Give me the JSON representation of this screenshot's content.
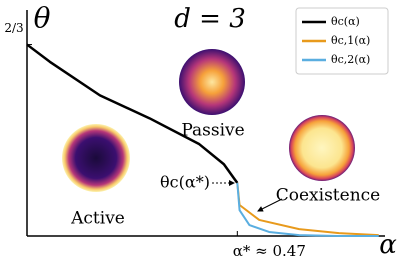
{
  "chart_data": {
    "type": "line",
    "title": "d = 3",
    "x_label": "α",
    "y_label": "θ",
    "xlim": [
      0,
      0.8
    ],
    "ylim": [
      0,
      0.77
    ],
    "xticks": [
      {
        "value": 0.47,
        "label": "α* ≈ 0.47"
      }
    ],
    "yticks": [
      {
        "value": 0.667,
        "label": "2/3"
      }
    ],
    "legend": "upper right",
    "annotations": [
      "Passive",
      "Active",
      "Coexistence",
      "θc(α*)"
    ],
    "series": [
      {
        "name": "θc(α)",
        "color": "#000000",
        "x": [
          0,
          0.051,
          0.163,
          0.274,
          0.385,
          0.44,
          0.463,
          0.47
        ],
        "values": [
          0.667,
          0.607,
          0.49,
          0.41,
          0.32,
          0.25,
          0.2,
          0.185
        ]
      },
      {
        "name": "θc,1(α)",
        "color": "#e89a1c",
        "x": [
          0.47,
          0.475,
          0.519,
          0.608,
          0.697,
          0.786
        ],
        "values": [
          0.185,
          0.108,
          0.056,
          0.024,
          0.01,
          0.003
        ]
      },
      {
        "name": "θc,2(α)",
        "color": "#5aaee0",
        "x": [
          0.47,
          0.475,
          0.497,
          0.541,
          0.608,
          0.697,
          0.786
        ],
        "values": [
          0.185,
          0.09,
          0.038,
          0.014,
          0.003,
          0,
          0
        ]
      }
    ]
  }
}
